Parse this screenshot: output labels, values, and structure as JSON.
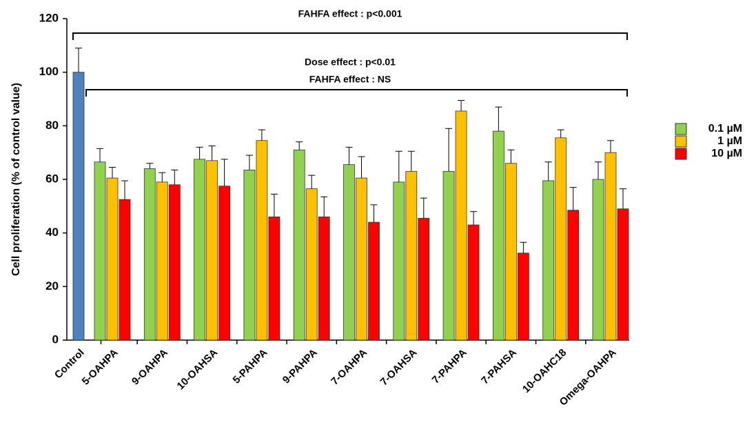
{
  "chart_data": {
    "type": "bar",
    "ylabel": "Cell proliferation (% of control value)",
    "annotations": [
      "FAHFA effect : p<0.001",
      "Dose effect : p<0.01",
      "FAHFA effect : NS"
    ],
    "categories": [
      "Control",
      "5-OAHPA",
      "9-OAHPA",
      "10-OAHSA",
      "5-PAHPA",
      "9-PAHPA",
      "7-OAHPA",
      "7-OAHSA",
      "7-PAHPA",
      "7-PAHSA",
      "10-OAHC18",
      "Omega-OAHPA"
    ],
    "series": [
      {
        "color": "#4f81bd",
        "values": [
          100,
          null,
          null,
          null,
          null,
          null,
          null,
          null,
          null,
          null,
          null,
          null
        ],
        "errors": [
          9,
          null,
          null,
          null,
          null,
          null,
          null,
          null,
          null,
          null,
          null,
          null
        ]
      },
      {
        "name": "0.1 µM",
        "color": "#92d050",
        "values": [
          null,
          66.5,
          64,
          67.5,
          63.5,
          71,
          65.5,
          59,
          63,
          78,
          59.5,
          60
        ],
        "errors": [
          null,
          5,
          2,
          4.5,
          5.5,
          3,
          6.5,
          11.5,
          16,
          9,
          7,
          6.5
        ]
      },
      {
        "name": "1 µM",
        "color": "#ffc000",
        "values": [
          null,
          60.5,
          59,
          67,
          74.5,
          56.5,
          60.5,
          63,
          85.5,
          66,
          75.5,
          70
        ],
        "errors": [
          null,
          4,
          3.5,
          5.5,
          4,
          5,
          8,
          7.5,
          4,
          5,
          3,
          4.5
        ]
      },
      {
        "name": "10 µM",
        "color": "#ff0000",
        "values": [
          null,
          52.5,
          58,
          57.5,
          46,
          46,
          44,
          45.5,
          43,
          32.5,
          48.5,
          49
        ],
        "errors": [
          null,
          7,
          5.5,
          10,
          8.5,
          7.5,
          6.5,
          7.5,
          5,
          4,
          8.5,
          7.5
        ]
      }
    ],
    "ylim": [
      0,
      120
    ],
    "yticks": [
      0,
      20,
      40,
      60,
      80,
      100,
      120
    ],
    "legend": "right"
  }
}
